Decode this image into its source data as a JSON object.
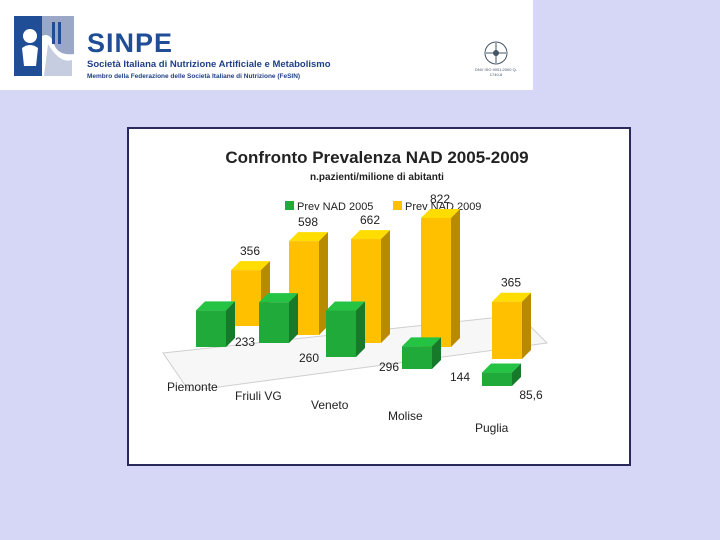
{
  "header": {
    "org_acronym": "SINPE",
    "org_full_name": "Società Italiana di Nutrizione Artificiale e Metabolismo",
    "org_membership": "Membro della Federazione delle Società Italiane di Nutrizione (FeSIN)",
    "cert_text": "DNV ISO 9001:2000 Q-1740-8"
  },
  "colors": {
    "background": "#d6d6f7",
    "brand_blue": "#1f4e96",
    "series_2005": "#1faa3a",
    "series_2009": "#ffc000"
  },
  "chart_data": {
    "type": "bar",
    "title": "Confronto Prevalenza NAD 2005-2009",
    "subtitle": "n.pazienti/milione di abitanti",
    "categories": [
      "Piemonte",
      "Friuli VG",
      "Veneto",
      "Molise",
      "Puglia"
    ],
    "series": [
      {
        "name": "Prev NAD 2005",
        "values": [
          233,
          260,
          296,
          144,
          85.6
        ],
        "labels": [
          "233",
          "260",
          "296",
          "144",
          "85,6"
        ]
      },
      {
        "name": "Prev NAD 2009",
        "values": [
          356,
          598,
          662,
          822,
          365
        ],
        "labels": [
          "356",
          "598",
          "662",
          "822",
          "365"
        ]
      }
    ],
    "legend": "top",
    "ylim": [
      0,
      900
    ]
  }
}
